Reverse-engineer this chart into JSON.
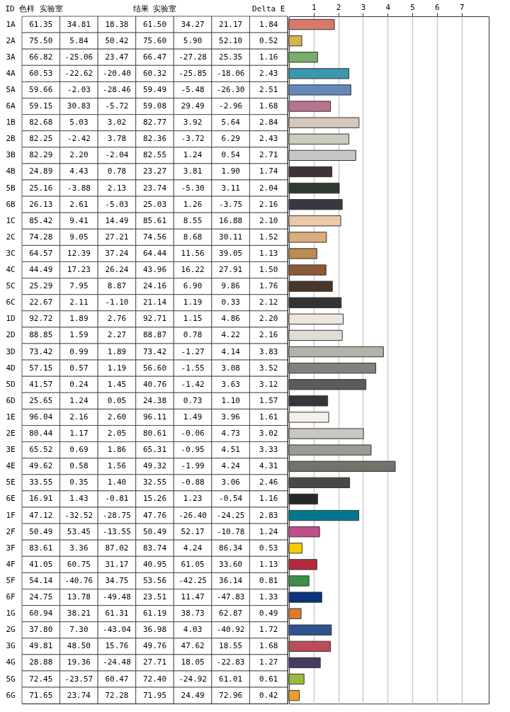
{
  "chart_data": [
    {
      "type": "heatmap",
      "ylabel": "ID",
      "data_labels": true,
      "categories": [
        "色样 实验室",
        null,
        null,
        "结果 实验室",
        null,
        null,
        "Delta E"
      ],
      "y_categories": [
        "1A",
        "2A",
        "3A",
        "4A",
        "5A",
        "6A",
        "1B",
        "2B",
        "3B",
        "4B",
        "5B",
        "6B",
        "1C",
        "2C",
        "3C",
        "4C",
        "5C",
        "6C",
        "1D",
        "2D",
        "3D",
        "4D",
        "5D",
        "6D",
        "1E",
        "2E",
        "3E",
        "4E",
        "5E",
        "6E",
        "1F",
        "2F",
        "3F",
        "4F",
        "5F",
        "6F",
        "1G",
        "2G",
        "3G",
        "4G",
        "5G",
        "6G"
      ],
      "cells": [
        [
          61.35,
          34.81,
          18.38,
          61.5,
          34.27,
          21.17,
          1.84
        ],
        [
          75.5,
          5.84,
          50.42,
          75.6,
          5.9,
          52.1,
          0.52
        ],
        [
          66.82,
          -25.06,
          23.47,
          66.47,
          -27.28,
          25.35,
          1.16
        ],
        [
          60.53,
          -22.62,
          -20.4,
          60.32,
          -25.85,
          -18.06,
          2.43
        ],
        [
          59.66,
          -2.03,
          -28.46,
          59.49,
          -5.48,
          -26.3,
          2.51
        ],
        [
          59.15,
          30.83,
          -5.72,
          59.08,
          29.49,
          -2.96,
          1.68
        ],
        [
          82.68,
          5.03,
          3.02,
          82.77,
          3.92,
          5.64,
          2.84
        ],
        [
          82.25,
          -2.42,
          3.78,
          82.36,
          -3.72,
          6.29,
          2.43
        ],
        [
          82.29,
          2.2,
          -2.04,
          82.55,
          1.24,
          0.54,
          2.71
        ],
        [
          24.89,
          4.43,
          0.78,
          23.27,
          3.81,
          1.9,
          1.74
        ],
        [
          25.16,
          -3.88,
          2.13,
          23.74,
          -5.3,
          3.11,
          2.04
        ],
        [
          26.13,
          2.61,
          -5.03,
          25.03,
          1.26,
          -3.75,
          2.16
        ],
        [
          85.42,
          9.41,
          14.49,
          85.61,
          8.55,
          16.88,
          2.1
        ],
        [
          74.28,
          9.05,
          27.21,
          74.56,
          8.68,
          30.11,
          1.52
        ],
        [
          64.57,
          12.39,
          37.24,
          64.44,
          11.56,
          39.05,
          1.13
        ],
        [
          44.49,
          17.23,
          26.24,
          43.96,
          16.22,
          27.91,
          1.5
        ],
        [
          25.29,
          7.95,
          8.87,
          24.16,
          6.9,
          9.86,
          1.76
        ],
        [
          22.67,
          2.11,
          -1.1,
          21.14,
          1.19,
          0.33,
          2.12
        ],
        [
          92.72,
          1.89,
          2.76,
          92.71,
          1.15,
          4.86,
          2.2
        ],
        [
          88.85,
          1.59,
          2.27,
          88.87,
          0.78,
          4.22,
          2.16
        ],
        [
          73.42,
          0.99,
          1.89,
          73.42,
          -1.27,
          4.14,
          3.83
        ],
        [
          57.15,
          0.57,
          1.19,
          56.6,
          -1.55,
          3.08,
          3.52
        ],
        [
          41.57,
          0.24,
          1.45,
          40.76,
          -1.42,
          3.63,
          3.12
        ],
        [
          25.65,
          1.24,
          0.05,
          24.38,
          0.73,
          1.1,
          1.57
        ],
        [
          96.04,
          2.16,
          2.6,
          96.11,
          1.49,
          3.96,
          1.61
        ],
        [
          80.44,
          1.17,
          2.05,
          80.61,
          -0.06,
          4.73,
          3.02
        ],
        [
          65.52,
          0.69,
          1.86,
          65.31,
          -0.95,
          4.51,
          3.33
        ],
        [
          49.62,
          0.58,
          1.56,
          49.32,
          -1.99,
          4.24,
          4.31
        ],
        [
          33.55,
          0.35,
          1.4,
          32.55,
          -0.88,
          3.06,
          2.46
        ],
        [
          16.91,
          1.43,
          -0.81,
          15.26,
          1.23,
          -0.54,
          1.16
        ],
        [
          47.12,
          -32.52,
          -28.75,
          47.76,
          -26.4,
          -24.25,
          2.83
        ],
        [
          50.49,
          53.45,
          -13.55,
          50.49,
          52.17,
          -10.78,
          1.24
        ],
        [
          83.61,
          3.36,
          87.02,
          83.74,
          4.24,
          86.34,
          0.53
        ],
        [
          41.05,
          60.75,
          31.17,
          40.95,
          61.05,
          33.6,
          1.13
        ],
        [
          54.14,
          -40.76,
          34.75,
          53.56,
          -42.25,
          36.14,
          0.81
        ],
        [
          24.75,
          13.78,
          -49.48,
          23.51,
          11.47,
          -47.83,
          1.33
        ],
        [
          60.94,
          38.21,
          61.31,
          61.19,
          38.73,
          62.87,
          0.49
        ],
        [
          37.8,
          7.3,
          -43.04,
          36.98,
          4.03,
          -40.92,
          1.72
        ],
        [
          49.81,
          48.5,
          15.76,
          49.76,
          47.62,
          18.55,
          1.68
        ],
        [
          28.88,
          19.36,
          -24.48,
          27.71,
          18.05,
          -22.83,
          1.27
        ],
        [
          72.45,
          -23.57,
          60.47,
          72.4,
          -24.92,
          61.01,
          0.61
        ],
        [
          71.65,
          23.74,
          72.28,
          71.95,
          24.49,
          72.96,
          0.42
        ]
      ],
      "cell_labels": [
        [
          "61.35",
          "34.81",
          "18.38",
          "61.50",
          "34.27",
          "21.17",
          "1.84"
        ],
        [
          "75.50",
          "5.84",
          "50.42",
          "75.60",
          "5.90",
          "52.10",
          "0.52"
        ],
        [
          "66.82",
          "-25.06",
          "23.47",
          "66.47",
          "-27.28",
          "25.35",
          "1.16"
        ],
        [
          "60.53",
          "-22.62",
          "-20.40",
          "60.32",
          "-25.85",
          "-18.06",
          "2.43"
        ],
        [
          "59.66",
          "-2.03",
          "-28.46",
          "59.49",
          "-5.48",
          "-26.30",
          "2.51"
        ],
        [
          "59.15",
          "30.83",
          "-5.72",
          "59.08",
          "29.49",
          "-2.96",
          "1.68"
        ],
        [
          "82.68",
          "5.03",
          "3.02",
          "82.77",
          "3.92",
          "5.64",
          "2.84"
        ],
        [
          "82.25",
          "-2.42",
          "3.78",
          "82.36",
          "-3.72",
          "6.29",
          "2.43"
        ],
        [
          "82.29",
          "2.20",
          "-2.04",
          "82.55",
          "1.24",
          "0.54",
          "2.71"
        ],
        [
          "24.89",
          "4.43",
          "0.78",
          "23.27",
          "3.81",
          "1.90",
          "1.74"
        ],
        [
          "25.16",
          "-3.88",
          "2.13",
          "23.74",
          "-5.30",
          "3.11",
          "2.04"
        ],
        [
          "26.13",
          "2.61",
          "-5.03",
          "25.03",
          "1.26",
          "-3.75",
          "2.16"
        ],
        [
          "85.42",
          "9.41",
          "14.49",
          "85.61",
          "8.55",
          "16.88",
          "2.10"
        ],
        [
          "74.28",
          "9.05",
          "27.21",
          "74.56",
          "8.68",
          "30.11",
          "1.52"
        ],
        [
          "64.57",
          "12.39",
          "37.24",
          "64.44",
          "11.56",
          "39.05",
          "1.13"
        ],
        [
          "44.49",
          "17.23",
          "26.24",
          "43.96",
          "16.22",
          "27.91",
          "1.50"
        ],
        [
          "25.29",
          "7.95",
          "8.87",
          "24.16",
          "6.90",
          "9.86",
          "1.76"
        ],
        [
          "22.67",
          "2.11",
          "-1.10",
          "21.14",
          "1.19",
          "0.33",
          "2.12"
        ],
        [
          "92.72",
          "1.89",
          "2.76",
          "92.71",
          "1.15",
          "4.86",
          "2.20"
        ],
        [
          "88.85",
          "1.59",
          "2.27",
          "88.87",
          "0.78",
          "4.22",
          "2.16"
        ],
        [
          "73.42",
          "0.99",
          "1.89",
          "73.42",
          "-1.27",
          "4.14",
          "3.83"
        ],
        [
          "57.15",
          "0.57",
          "1.19",
          "56.60",
          "-1.55",
          "3.08",
          "3.52"
        ],
        [
          "41.57",
          "0.24",
          "1.45",
          "40.76",
          "-1.42",
          "3.63",
          "3.12"
        ],
        [
          "25.65",
          "1.24",
          "0.05",
          "24.38",
          "0.73",
          "1.10",
          "1.57"
        ],
        [
          "96.04",
          "2.16",
          "2.60",
          "96.11",
          "1.49",
          "3.96",
          "1.61"
        ],
        [
          "80.44",
          "1.17",
          "2.05",
          "80.61",
          "-0.06",
          "4.73",
          "3.02"
        ],
        [
          "65.52",
          "0.69",
          "1.86",
          "65.31",
          "-0.95",
          "4.51",
          "3.33"
        ],
        [
          "49.62",
          "0.58",
          "1.56",
          "49.32",
          "-1.99",
          "4.24",
          "4.31"
        ],
        [
          "33.55",
          "0.35",
          "1.40",
          "32.55",
          "-0.88",
          "3.06",
          "2.46"
        ],
        [
          "16.91",
          "1.43",
          "-0.81",
          "15.26",
          "1.23",
          "-0.54",
          "1.16"
        ],
        [
          "47.12",
          "-32.52",
          "-28.75",
          "47.76",
          "-26.40",
          "-24.25",
          "2.83"
        ],
        [
          "50.49",
          "53.45",
          "-13.55",
          "50.49",
          "52.17",
          "-10.78",
          "1.24"
        ],
        [
          "83.61",
          "3.36",
          "87.02",
          "83.74",
          "4.24",
          "86.34",
          "0.53"
        ],
        [
          "41.05",
          "60.75",
          "31.17",
          "40.95",
          "61.05",
          "33.60",
          "1.13"
        ],
        [
          "54.14",
          "-40.76",
          "34.75",
          "53.56",
          "-42.25",
          "36.14",
          "0.81"
        ],
        [
          "24.75",
          "13.78",
          "-49.48",
          "23.51",
          "11.47",
          "-47.83",
          "1.33"
        ],
        [
          "60.94",
          "38.21",
          "61.31",
          "61.19",
          "38.73",
          "62.87",
          "0.49"
        ],
        [
          "37.80",
          "7.30",
          "-43.04",
          "36.98",
          "4.03",
          "-40.92",
          "1.72"
        ],
        [
          "49.81",
          "48.50",
          "15.76",
          "49.76",
          "47.62",
          "18.55",
          "1.68"
        ],
        [
          "28.88",
          "19.36",
          "-24.48",
          "27.71",
          "18.05",
          "-22.83",
          "1.27"
        ],
        [
          "72.45",
          "-23.57",
          "60.47",
          "72.40",
          "-24.92",
          "61.01",
          "0.61"
        ],
        [
          "71.65",
          "23.74",
          "72.28",
          "71.95",
          "24.49",
          "72.96",
          "0.42"
        ]
      ]
    },
    {
      "type": "bar",
      "orientation": "horizontal",
      "categories": [
        null,
        null,
        null,
        null,
        null,
        null,
        null,
        null,
        null,
        null,
        null,
        null,
        null,
        null,
        null,
        null,
        null,
        null,
        null,
        null,
        null,
        null,
        null,
        null,
        null,
        null,
        null,
        null,
        null,
        null,
        null,
        null,
        null,
        null,
        null,
        null,
        null,
        null,
        null,
        null,
        null,
        null
      ],
      "values": [
        1.84,
        0.52,
        1.16,
        2.43,
        2.51,
        1.68,
        2.84,
        2.43,
        2.71,
        1.74,
        2.04,
        2.16,
        2.1,
        1.52,
        1.13,
        1.5,
        1.76,
        2.12,
        2.2,
        2.16,
        3.83,
        3.52,
        3.12,
        1.57,
        1.61,
        3.02,
        3.33,
        4.31,
        2.46,
        1.16,
        2.83,
        1.24,
        0.53,
        1.13,
        0.81,
        1.33,
        0.49,
        1.72,
        1.68,
        1.27,
        0.61,
        0.42
      ],
      "colors": [
        "#d9796b",
        "#d9b34f",
        "#79ad6b",
        "#3a97ad",
        "#6289b8",
        "#b8738f",
        "#d6c8bd",
        "#c9cdbd",
        "#c8c6c6",
        "#3d3435",
        "#2f3a31",
        "#393840",
        "#edc9a7",
        "#d7ae7c",
        "#bb8b4f",
        "#8a5a36",
        "#48362a",
        "#333333",
        "#ede6dc",
        "#e1ddd6",
        "#b3b3ac",
        "#80827d",
        "#5b5c57",
        "#363636",
        "#f5f0e8",
        "#c8c7c0",
        "#9a9b94",
        "#72736c",
        "#484944",
        "#27272a",
        "#00788f",
        "#bf4f8a",
        "#f5cc00",
        "#b5293a",
        "#3d8f45",
        "#0a337a",
        "#e07a2a",
        "#2f5291",
        "#bb4c58",
        "#473a60",
        "#9cbb38",
        "#ee9e2a"
      ],
      "xlim": [
        0,
        8.1
      ],
      "xticks": [
        1,
        2,
        3,
        4,
        5,
        6,
        7
      ],
      "grid": "x",
      "tick_labels": "x"
    }
  ]
}
